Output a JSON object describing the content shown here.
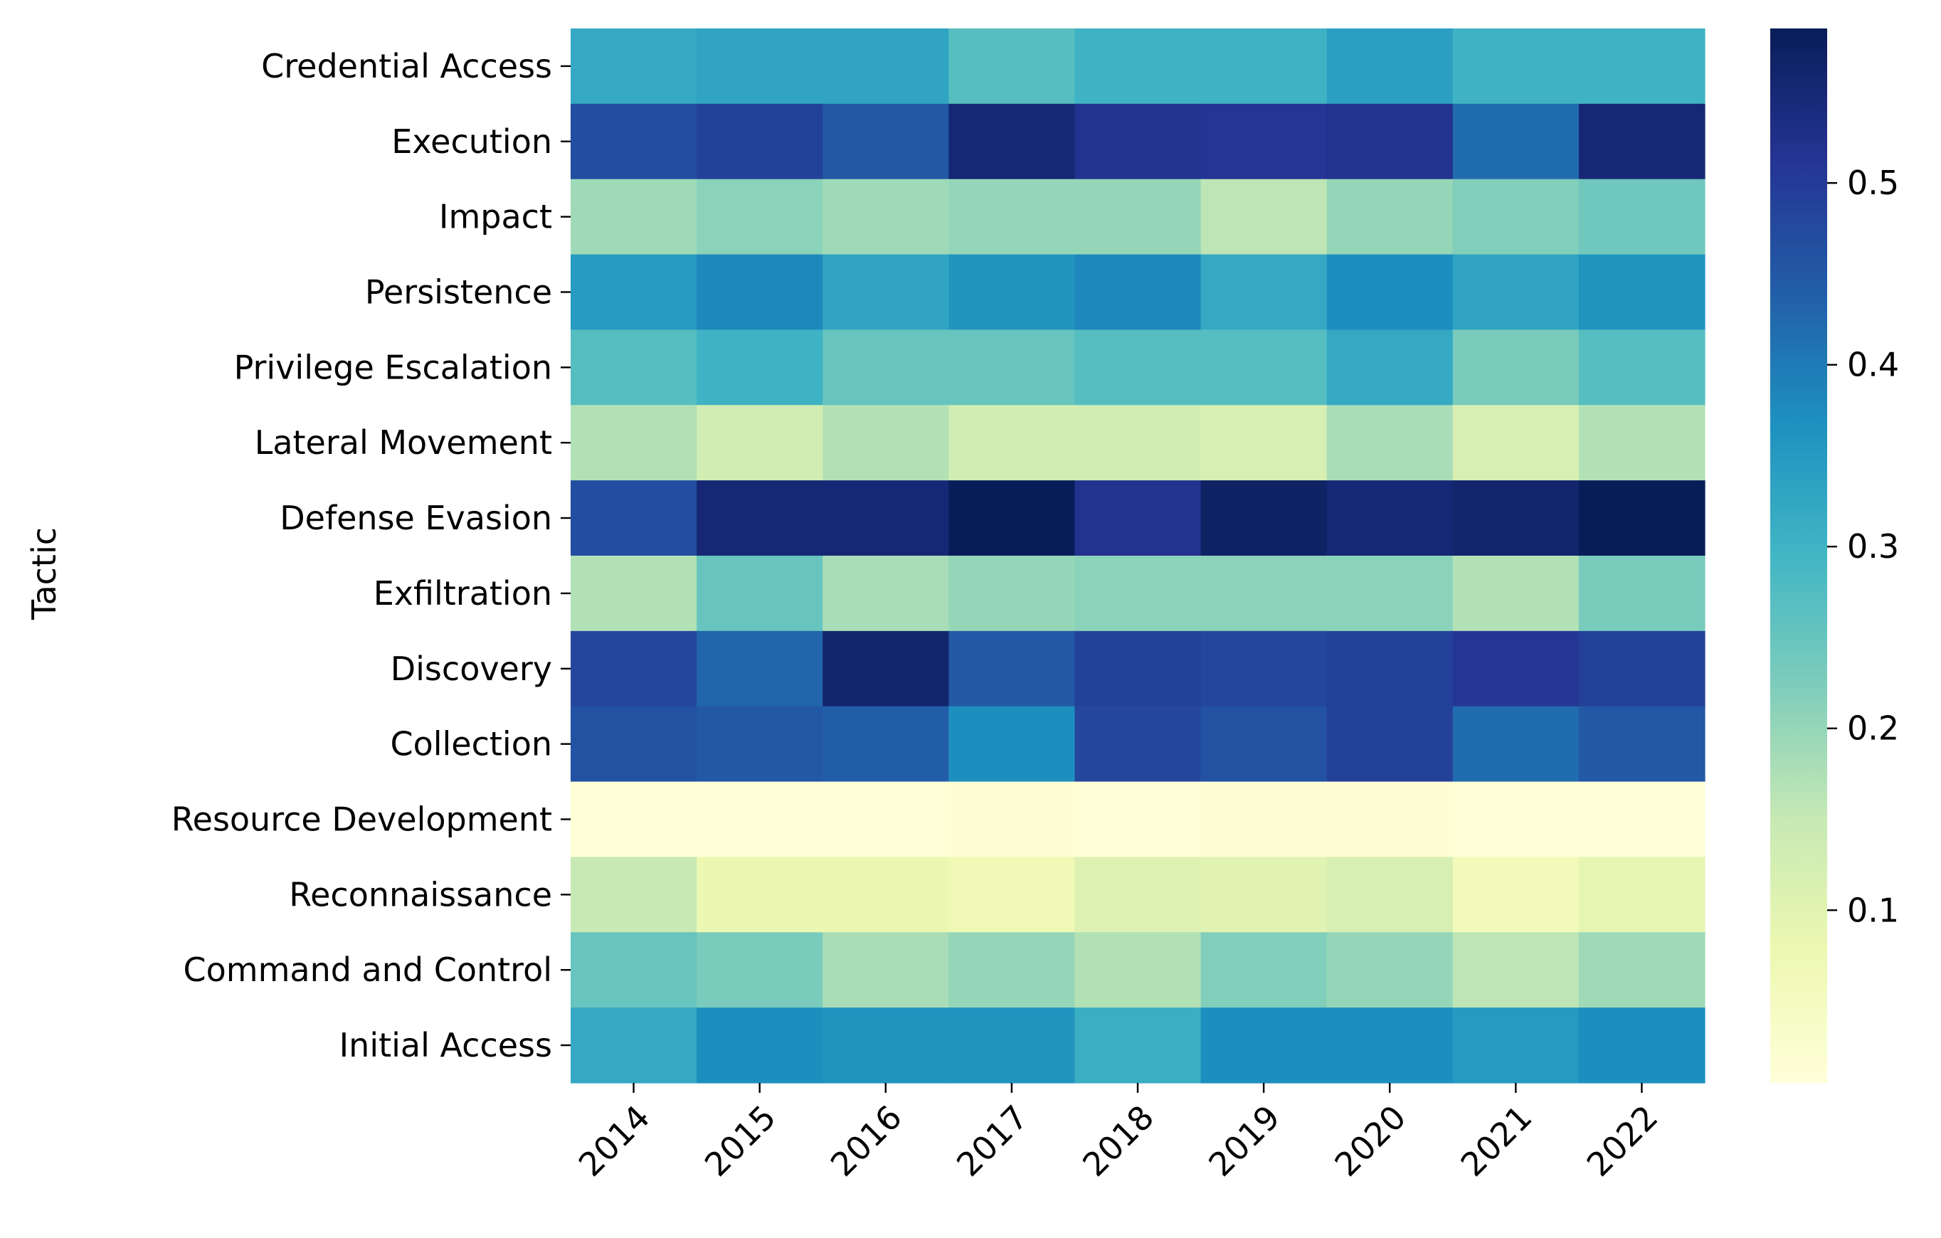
{
  "chart_data": {
    "type": "heatmap",
    "title": "",
    "xlabel": "",
    "ylabel": "Tactic",
    "x_categories": [
      "2014",
      "2015",
      "2016",
      "2017",
      "2018",
      "2019",
      "2020",
      "2021",
      "2022"
    ],
    "y_categories": [
      "Credential Access",
      "Execution",
      "Impact",
      "Persistence",
      "Privilege Escalation",
      "Lateral Movement",
      "Defense Evasion",
      "Exfiltration",
      "Discovery",
      "Collection",
      "Resource Development",
      "Reconnaissance",
      "Command and Control",
      "Initial Access"
    ],
    "values": [
      [
        0.32,
        0.33,
        0.33,
        0.27,
        0.3,
        0.3,
        0.34,
        0.3,
        0.3
      ],
      [
        0.47,
        0.49,
        0.45,
        0.55,
        0.52,
        0.51,
        0.52,
        0.42,
        0.55
      ],
      [
        0.19,
        0.21,
        0.19,
        0.2,
        0.2,
        0.16,
        0.2,
        0.22,
        0.24
      ],
      [
        0.35,
        0.38,
        0.33,
        0.36,
        0.38,
        0.32,
        0.37,
        0.33,
        0.36
      ],
      [
        0.27,
        0.3,
        0.25,
        0.25,
        0.27,
        0.27,
        0.32,
        0.23,
        0.27
      ],
      [
        0.17,
        0.13,
        0.17,
        0.13,
        0.13,
        0.12,
        0.18,
        0.12,
        0.17
      ],
      [
        0.47,
        0.55,
        0.55,
        0.59,
        0.52,
        0.57,
        0.55,
        0.56,
        0.59
      ],
      [
        0.17,
        0.25,
        0.18,
        0.2,
        0.21,
        0.21,
        0.21,
        0.17,
        0.23
      ],
      [
        0.48,
        0.43,
        0.56,
        0.45,
        0.49,
        0.48,
        0.49,
        0.51,
        0.49
      ],
      [
        0.46,
        0.45,
        0.44,
        0.37,
        0.48,
        0.46,
        0.49,
        0.42,
        0.45
      ],
      [
        0.01,
        0.01,
        0.01,
        0.015,
        0.01,
        0.015,
        0.015,
        0.01,
        0.01
      ],
      [
        0.15,
        0.08,
        0.08,
        0.07,
        0.11,
        0.1,
        0.12,
        0.06,
        0.09
      ],
      [
        0.25,
        0.23,
        0.18,
        0.2,
        0.17,
        0.22,
        0.2,
        0.16,
        0.19
      ],
      [
        0.32,
        0.37,
        0.36,
        0.36,
        0.31,
        0.37,
        0.37,
        0.35,
        0.37
      ]
    ],
    "colormap": "YlGnBu",
    "colorbar": {
      "vmin": 0.005,
      "vmax": 0.585,
      "ticks": [
        0.1,
        0.2,
        0.3,
        0.4,
        0.5
      ],
      "tick_labels": [
        "0.1",
        "0.2",
        "0.3",
        "0.4",
        "0.5"
      ]
    },
    "grid": false
  }
}
